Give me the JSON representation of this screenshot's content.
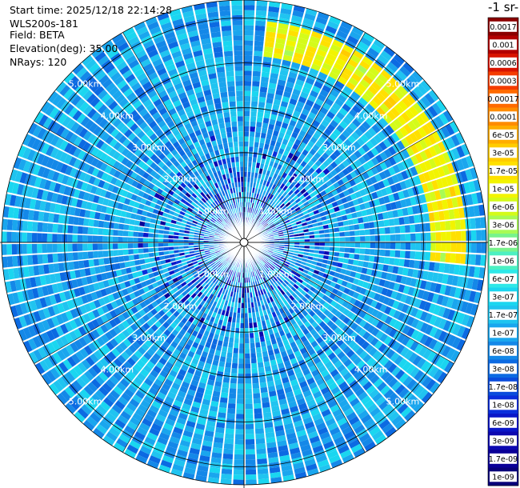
{
  "info": {
    "start_time": "Start time: 2025/12/18 22:14:28",
    "instrument": "WLS200s-181",
    "field": "Field: BETA",
    "elevation": "Elevation(deg): 35.00",
    "nrays": "NRays: 120"
  },
  "colorbar": {
    "title": "-1 sr-",
    "ticks": [
      "0.0017",
      "0.001",
      "0.0006",
      "0.0003",
      "0.00017",
      "0.0001",
      "6e-05",
      "3e-05",
      "1.7e-05",
      "1e-05",
      "6e-06",
      "3e-06",
      "1.7e-06",
      "1e-06",
      "6e-07",
      "3e-07",
      "1.7e-07",
      "1e-07",
      "6e-08",
      "3e-08",
      "1.7e-08",
      "1e-08",
      "6e-09",
      "3e-09",
      "1.7e-09",
      "1e-09"
    ],
    "colors": [
      "#8b0000",
      "#b30000",
      "#d81400",
      "#f43c00",
      "#ff6a00",
      "#ff8c00",
      "#ffad00",
      "#ffcc00",
      "#ffe000",
      "#f2f400",
      "#d4fb1a",
      "#a8fb55",
      "#78f38c",
      "#4cf0c2",
      "#2ee8e8",
      "#1ad6f0",
      "#20c4f0",
      "#1aa6ee",
      "#1488e8",
      "#0c6ae2",
      "#0a4cdc",
      "#0a2edc",
      "#0a16c8",
      "#0c08b0",
      "#0a0098",
      "#08007a"
    ]
  },
  "chart_data": {
    "type": "heatmap",
    "projection": "polar PPI",
    "field": "BETA",
    "elevation_deg": 35.0,
    "n_rays": 120,
    "range_rings_km": [
      1.0,
      2.0,
      3.0,
      4.0,
      5.0
    ],
    "range_labels": [
      "1.00km",
      "2.00km",
      "3.00km",
      "4.00km",
      "5.00km"
    ],
    "max_range_km": 5.0,
    "colorscale": "log10",
    "value_range": [
      1e-09,
      0.0017
    ],
    "background_value": 1e-07,
    "features": [
      {
        "description": "enhanced backscatter arc",
        "value": 1e-05,
        "azimuth_deg": [
          5,
          95
        ],
        "range_km": [
          4.3,
          4.8
        ]
      }
    ]
  }
}
